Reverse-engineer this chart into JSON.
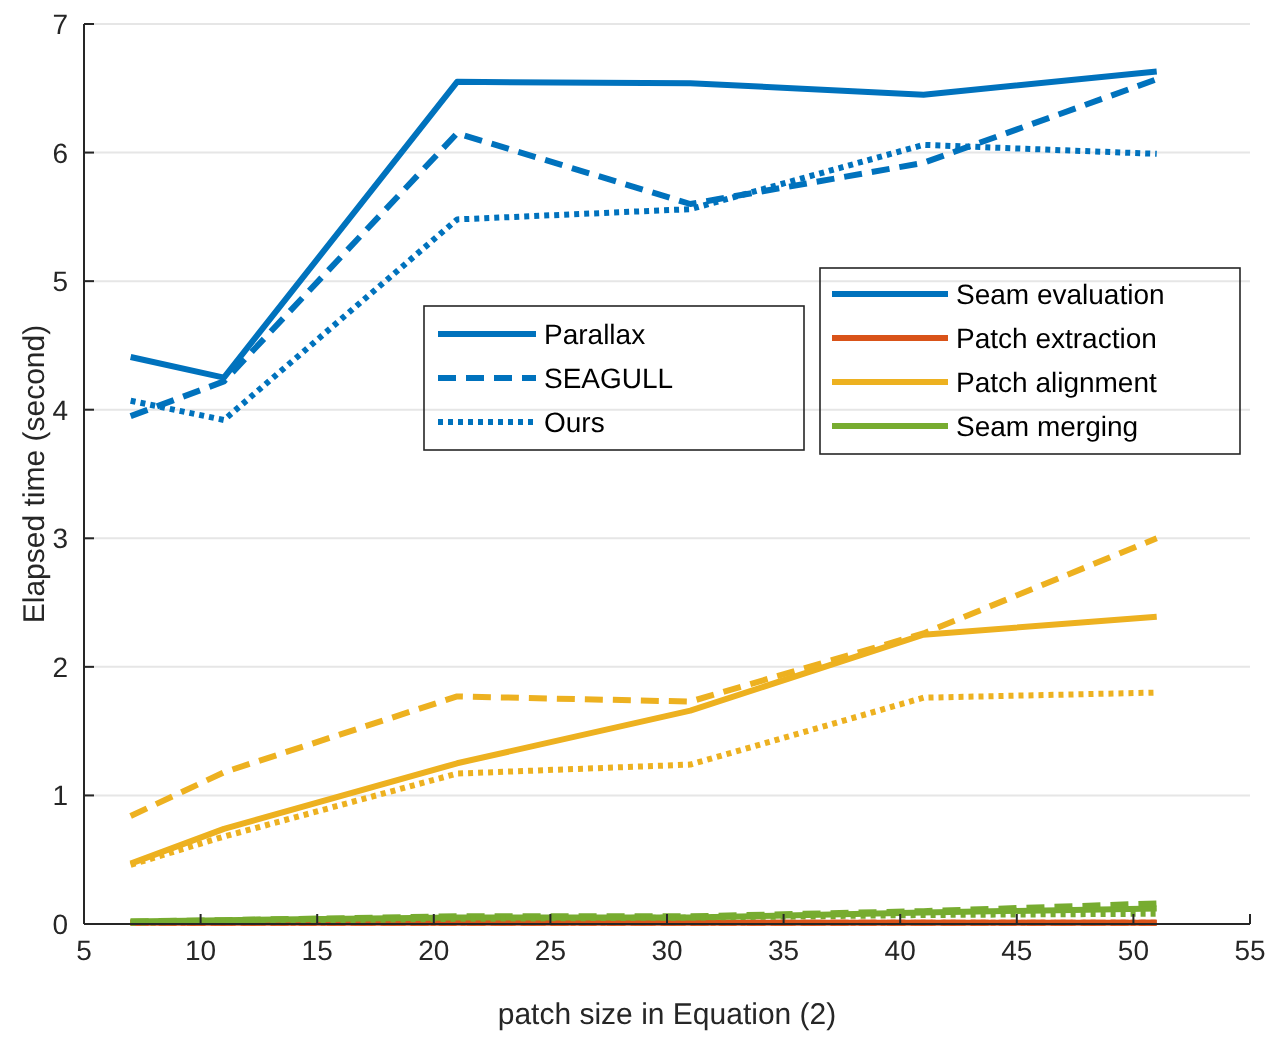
{
  "chart_data": {
    "type": "line",
    "xlabel": "patch size in Equation (2)",
    "ylabel": "Elapsed time (second)",
    "xlim": [
      5,
      55
    ],
    "xticks": [
      5,
      10,
      15,
      20,
      25,
      30,
      35,
      40,
      45,
      50,
      55
    ],
    "ylim": [
      0,
      7
    ],
    "yticks": [
      0,
      1,
      2,
      3,
      4,
      5,
      6,
      7
    ],
    "grid": "y",
    "legend": "right",
    "marker": "none",
    "annotations": [
      "Parallax"
    ],
    "x": [
      7,
      11,
      21,
      31,
      41,
      51
    ],
    "series": [
      {
        "name": "Seam evaluation",
        "color": "#0072bd",
        "line_style": "solid",
        "values": [
          4.41,
          4.25,
          6.55,
          6.54,
          6.45,
          6.63
        ]
      },
      {
        "name": "SEAGULL",
        "color": "#0072bd",
        "line_style": "dashed",
        "values": [
          3.95,
          4.22,
          6.15,
          5.6,
          5.92,
          6.57
        ]
      },
      {
        "name": "Ours",
        "color": "#0072bd",
        "line_style": "dotted",
        "values": [
          4.07,
          3.92,
          5.48,
          5.56,
          6.06,
          5.99
        ]
      },
      {
        "name": "Patch extraction",
        "color": "#d95319",
        "line_style": "solid",
        "values": [
          0.01,
          0.01,
          0.01,
          0.01,
          0.01,
          0.01
        ]
      },
      {
        "color": "#d95319",
        "line_style": "dashed",
        "values": [
          0.01,
          0.01,
          0.01,
          0.01,
          0.01,
          0.01
        ]
      },
      {
        "color": "#d95319",
        "line_style": "dotted",
        "values": [
          0.01,
          0.01,
          0.01,
          0.01,
          0.01,
          0.01
        ]
      },
      {
        "name": "Patch alignment",
        "color": "#edb120",
        "line_style": "solid",
        "values": [
          0.47,
          0.74,
          1.25,
          1.66,
          2.25,
          2.39
        ]
      },
      {
        "color": "#edb120",
        "line_style": "dashed",
        "values": [
          0.84,
          1.18,
          1.77,
          1.73,
          2.26,
          3.0
        ]
      },
      {
        "color": "#edb120",
        "line_style": "dotted",
        "values": [
          0.46,
          0.68,
          1.17,
          1.24,
          1.76,
          1.8
        ]
      },
      {
        "name": "Seam merging",
        "color": "#77ac30",
        "line_style": "solid",
        "values": [
          0.02,
          0.03,
          0.05,
          0.05,
          0.09,
          0.12
        ]
      },
      {
        "color": "#77ac30",
        "line_style": "dashed",
        "values": [
          0.02,
          0.03,
          0.06,
          0.06,
          0.1,
          0.16
        ]
      },
      {
        "color": "#77ac30",
        "line_style": "dotted",
        "values": [
          0.01,
          0.02,
          0.04,
          0.05,
          0.07,
          0.08
        ]
      }
    ]
  }
}
